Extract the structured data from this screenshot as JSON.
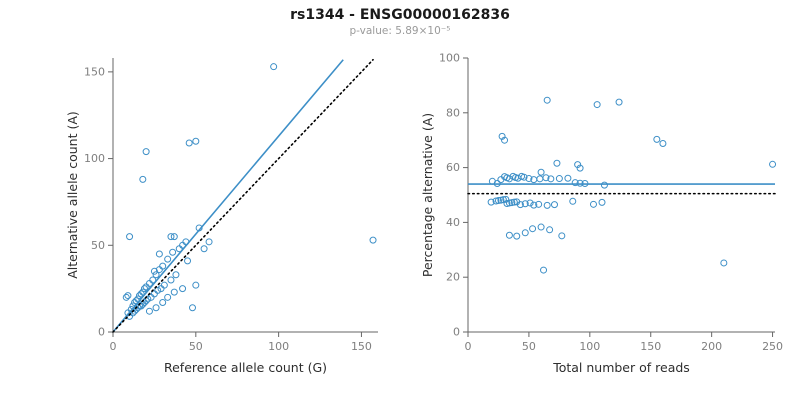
{
  "header": {
    "title": "rs1344 - ENSG00000162836",
    "subtitle": "p-value: 5.89×10⁻⁵"
  },
  "style": {
    "accent": "#3d8fc7",
    "dotted_line": "#000000",
    "axis": "#666666",
    "tick_text": "#7f7f7f",
    "label_text": "#2e2e2e",
    "background": "#ffffff"
  },
  "chart_data": [
    {
      "type": "scatter",
      "title": "",
      "xlabel": "Reference allele count (G)",
      "ylabel": "Alternative allele count (A)",
      "xlim": [
        0,
        160
      ],
      "ylim": [
        0,
        158
      ],
      "xticks": [
        0,
        50,
        100,
        150
      ],
      "yticks": [
        0,
        50,
        100,
        150
      ],
      "grid": false,
      "legend": null,
      "points": [
        [
          97,
          153
        ],
        [
          157,
          53
        ],
        [
          20,
          104
        ],
        [
          18,
          88
        ],
        [
          50,
          110
        ],
        [
          46,
          109
        ],
        [
          10,
          55
        ],
        [
          8,
          20
        ],
        [
          9,
          21
        ],
        [
          37,
          55
        ],
        [
          42,
          50
        ],
        [
          28,
          45
        ],
        [
          35,
          55
        ],
        [
          25,
          35
        ],
        [
          37,
          23
        ],
        [
          42,
          25
        ],
        [
          50,
          27
        ],
        [
          30,
          17
        ],
        [
          26,
          14
        ],
        [
          22,
          12
        ],
        [
          48,
          14
        ],
        [
          33,
          20
        ],
        [
          55,
          48
        ],
        [
          58,
          52
        ],
        [
          45,
          41
        ],
        [
          40,
          48
        ],
        [
          9,
          11
        ],
        [
          10,
          9
        ],
        [
          11,
          13
        ],
        [
          12,
          11
        ],
        [
          12,
          15
        ],
        [
          13,
          12
        ],
        [
          13,
          17
        ],
        [
          14,
          13
        ],
        [
          14,
          18
        ],
        [
          15,
          14
        ],
        [
          15,
          19
        ],
        [
          16,
          15
        ],
        [
          16,
          21
        ],
        [
          17,
          15
        ],
        [
          17,
          22
        ],
        [
          18,
          16
        ],
        [
          18,
          23
        ],
        [
          19,
          17
        ],
        [
          19,
          25
        ],
        [
          20,
          18
        ],
        [
          20,
          26
        ],
        [
          21,
          19
        ],
        [
          22,
          28
        ],
        [
          23,
          20
        ],
        [
          24,
          30
        ],
        [
          25,
          22
        ],
        [
          26,
          33
        ],
        [
          27,
          24
        ],
        [
          28,
          36
        ],
        [
          29,
          25
        ],
        [
          30,
          38
        ],
        [
          31,
          27
        ],
        [
          33,
          42
        ],
        [
          35,
          30
        ],
        [
          36,
          46
        ],
        [
          38,
          33
        ],
        [
          44,
          52
        ],
        [
          52,
          60
        ]
      ],
      "lines": [
        {
          "name": "fit-line",
          "style": "solid",
          "color": "#3d8fc7",
          "from": [
            0,
            0
          ],
          "to": [
            139,
            157
          ]
        },
        {
          "name": "identity-line",
          "style": "dotted",
          "color": "#000000",
          "from": [
            0,
            0
          ],
          "to": [
            157,
            157
          ]
        }
      ]
    },
    {
      "type": "scatter",
      "title": "",
      "xlabel": "Total number of reads",
      "ylabel": "Percentage alternative (A)",
      "xlim": [
        0,
        252
      ],
      "ylim": [
        0,
        100
      ],
      "xticks": [
        0,
        50,
        100,
        150,
        200,
        250
      ],
      "yticks": [
        0,
        20,
        40,
        60,
        80,
        100
      ],
      "grid": false,
      "legend": null,
      "points": [
        [
          250,
          61.2
        ],
        [
          210,
          25.2
        ],
        [
          124,
          83.9
        ],
        [
          106,
          83.0
        ],
        [
          160,
          68.8
        ],
        [
          155,
          70.3
        ],
        [
          65,
          84.6
        ],
        [
          28,
          71.4
        ],
        [
          30,
          70.0
        ],
        [
          92,
          59.8
        ],
        [
          92,
          54.3
        ],
        [
          73,
          61.6
        ],
        [
          90,
          61.1
        ],
        [
          60,
          58.3
        ],
        [
          60,
          38.3
        ],
        [
          67,
          37.3
        ],
        [
          77,
          35.1
        ],
        [
          47,
          36.2
        ],
        [
          40,
          35.0
        ],
        [
          34,
          35.3
        ],
        [
          62,
          22.6
        ],
        [
          53,
          37.7
        ],
        [
          103,
          46.6
        ],
        [
          110,
          47.3
        ],
        [
          86,
          47.7
        ],
        [
          88,
          54.5
        ],
        [
          20,
          55.0
        ],
        [
          19,
          47.4
        ],
        [
          24,
          54.2
        ],
        [
          23,
          47.8
        ],
        [
          27,
          55.6
        ],
        [
          25,
          48.0
        ],
        [
          30,
          56.7
        ],
        [
          27,
          48.1
        ],
        [
          32,
          56.3
        ],
        [
          29,
          48.3
        ],
        [
          34,
          55.9
        ],
        [
          31,
          48.4
        ],
        [
          37,
          56.8
        ],
        [
          32,
          46.9
        ],
        [
          39,
          56.4
        ],
        [
          34,
          47.1
        ],
        [
          41,
          56.1
        ],
        [
          36,
          47.2
        ],
        [
          44,
          56.8
        ],
        [
          38,
          47.4
        ],
        [
          46,
          56.5
        ],
        [
          40,
          47.5
        ],
        [
          50,
          56.0
        ],
        [
          43,
          46.5
        ],
        [
          54,
          55.6
        ],
        [
          47,
          46.8
        ],
        [
          59,
          55.9
        ],
        [
          51,
          47.1
        ],
        [
          64,
          56.3
        ],
        [
          54,
          46.3
        ],
        [
          68,
          55.9
        ],
        [
          58,
          46.6
        ],
        [
          75,
          56.0
        ],
        [
          65,
          46.2
        ],
        [
          82,
          56.1
        ],
        [
          71,
          46.5
        ],
        [
          96,
          54.2
        ],
        [
          112,
          53.6
        ]
      ],
      "lines": [
        {
          "name": "mean-line",
          "style": "solid",
          "color": "#3d8fc7",
          "from": [
            0,
            54
          ],
          "to": [
            252,
            54
          ]
        },
        {
          "name": "expected-line",
          "style": "dotted",
          "color": "#000000",
          "from": [
            0,
            50.5
          ],
          "to": [
            252,
            50.5
          ]
        }
      ]
    }
  ]
}
